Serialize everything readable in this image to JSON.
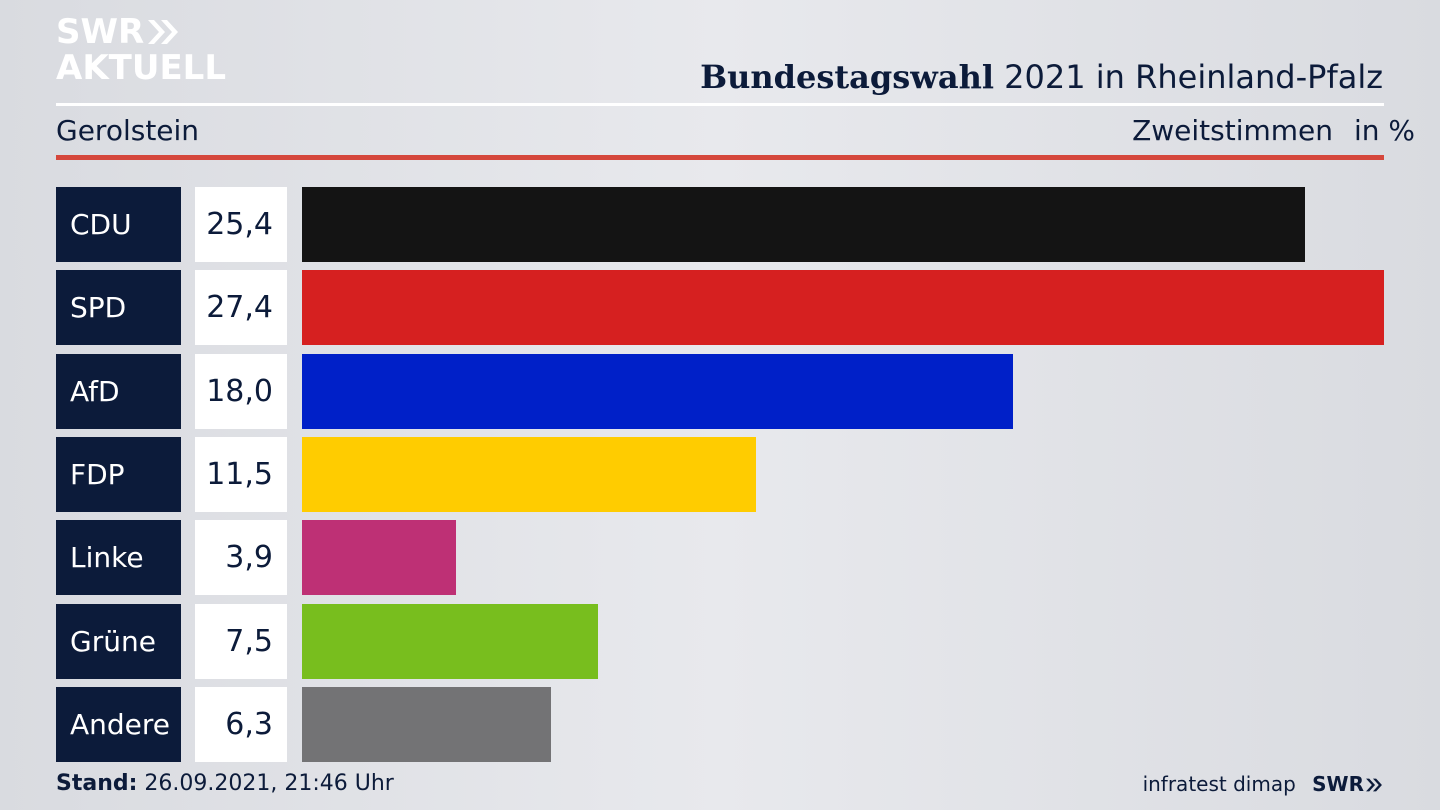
{
  "brand": {
    "line1": "SWR",
    "line2": "AKTUELL",
    "footer_logo": "SWR",
    "source": "infratest dimap"
  },
  "header": {
    "title_bold": "Bundestagswahl",
    "title_rest": "2021 in Rheinland-Pfalz",
    "region": "Gerolstein",
    "vote_type": "Zweitstimmen",
    "unit": "in %"
  },
  "footer": {
    "stand_label": "Stand:",
    "stand_value": "26.09.2021, 21:46 Uhr"
  },
  "colors": {
    "navy": "#0c1b3a",
    "red_rule": "#d5473c"
  },
  "chart_data": {
    "type": "bar",
    "orientation": "horizontal",
    "categories": [
      "CDU",
      "SPD",
      "AfD",
      "FDP",
      "Linke",
      "Grüne",
      "Andere"
    ],
    "values": [
      25.4,
      27.4,
      18.0,
      11.5,
      3.9,
      7.5,
      6.3
    ],
    "value_labels": [
      "25,4",
      "27,4",
      "18,0",
      "11,5",
      "3,9",
      "7,5",
      "6,3"
    ],
    "colors": [
      "#141414",
      "#d62020",
      "#0020c8",
      "#ffcc00",
      "#be3075",
      "#78be1e",
      "#737375"
    ],
    "xlim": [
      0,
      27.4
    ],
    "unit": "in %",
    "grid": false,
    "legend": "none"
  }
}
